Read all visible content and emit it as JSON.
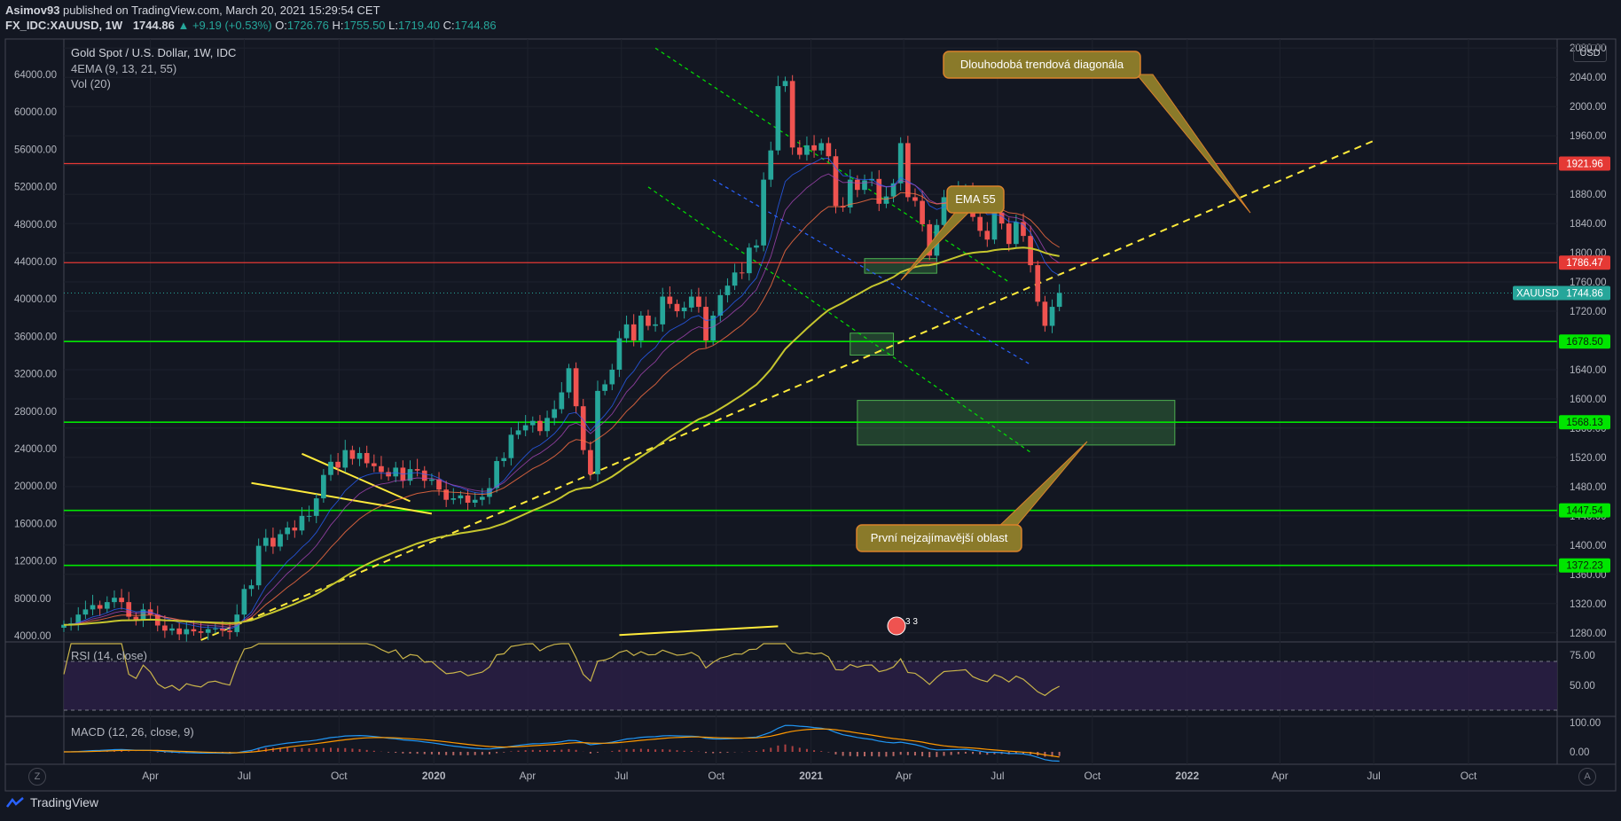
{
  "header": {
    "publisher": "Asimov93",
    "published_text": "published on TradingView.com, March 20, 2021 15:29:54 CET",
    "symbol": "FX_IDC:XAUUSD, 1W",
    "last": "1744.86",
    "change": "+9.19 (+0.53%)",
    "ohlc": [
      {
        "k": "O:",
        "v": "1726.76"
      },
      {
        "k": "H:",
        "v": "1755.50"
      },
      {
        "k": "L:",
        "v": "1719.40"
      },
      {
        "k": "C:",
        "v": "1744.86"
      }
    ]
  },
  "legend": {
    "title": "Gold Spot / U.S. Dollar, 1W, IDC",
    "ema": "4EMA (9, 13, 21, 55)",
    "vol": "Vol (20)",
    "rsi": "RSI (14, close)",
    "macd": "MACD (12, 26, close, 9)"
  },
  "currency_button": "USD",
  "footer": {
    "brand": "TradingView",
    "z_button": "Z",
    "a_button": "A"
  },
  "colors": {
    "background": "#131722",
    "up": "#26a69a",
    "down": "#ef5350",
    "support": "#00e600",
    "resistance": "#e53935",
    "trend": "#ffeb3b",
    "ema55": "#c6c62e",
    "annotation_fill": "#8a7a2a",
    "annotation_border": "#d9822b",
    "rsi_band": "#2a1f44"
  },
  "chart_data": {
    "type": "candlestick",
    "symbol": "XAUUSD",
    "interval": "1W",
    "x_tick_labels": [
      "Apr",
      "Jul",
      "Oct",
      "2020",
      "Apr",
      "Jul",
      "Oct",
      "2021",
      "Apr",
      "Jul",
      "Oct",
      "2022",
      "Apr",
      "Jul",
      "Oct"
    ],
    "x_tick_dates": [
      "2019-04-01",
      "2019-07-01",
      "2019-10-01",
      "2020-01-01",
      "2020-04-01",
      "2020-07-01",
      "2020-10-01",
      "2021-01-01",
      "2021-04-01",
      "2021-07-01",
      "2021-10-01",
      "2022-01-01",
      "2022-04-01",
      "2022-07-01",
      "2022-10-01"
    ],
    "x_range": [
      "2019-01-07",
      "2022-12-26"
    ],
    "y_right_ticks": [
      2080,
      2040,
      2000,
      1960,
      1920,
      1880,
      1840,
      1800,
      1760,
      1720,
      1680,
      1640,
      1600,
      1560,
      1520,
      1480,
      1440,
      1400,
      1360,
      1320,
      1280
    ],
    "y_right_range": [
      1270,
      2090
    ],
    "volume_scale_ticks": [
      "64000.00",
      "60000.00",
      "56000.00",
      "52000.00",
      "48000.00",
      "44000.00",
      "40000.00",
      "36000.00",
      "32000.00",
      "28000.00",
      "24000.00",
      "20000.00",
      "16000.00",
      "12000.00",
      "8000.00",
      "4000.00"
    ],
    "candles_start": "2019-01-07",
    "candles_close": [
      1291,
      1293,
      1305,
      1312,
      1318,
      1313,
      1322,
      1328,
      1322,
      1302,
      1298,
      1312,
      1305,
      1290,
      1283,
      1286,
      1278,
      1285,
      1282,
      1280,
      1285,
      1286,
      1283,
      1281,
      1305,
      1340,
      1345,
      1399,
      1410,
      1398,
      1415,
      1424,
      1420,
      1440,
      1440,
      1464,
      1496,
      1514,
      1506,
      1530,
      1518,
      1526,
      1512,
      1508,
      1500,
      1494,
      1506,
      1488,
      1504,
      1502,
      1488,
      1490,
      1476,
      1462,
      1464,
      1468,
      1458,
      1462,
      1466,
      1478,
      1515,
      1519,
      1551,
      1557,
      1564,
      1570,
      1556,
      1574,
      1586,
      1609,
      1642,
      1590,
      1530,
      1497,
      1611,
      1620,
      1640,
      1683,
      1702,
      1680,
      1714,
      1700,
      1702,
      1740,
      1730,
      1720,
      1725,
      1740,
      1726,
      1680,
      1714,
      1742,
      1755,
      1773,
      1772,
      1807,
      1810,
      1900,
      1940,
      2028,
      2035,
      1944,
      1934,
      1947,
      1940,
      1950,
      1932,
      1864,
      1862,
      1900,
      1886,
      1899,
      1901,
      1867,
      1877,
      1895,
      1950,
      1876,
      1871,
      1839,
      1796,
      1838,
      1876,
      1880,
      1884,
      1888,
      1849,
      1830,
      1818,
      1855,
      1840,
      1812,
      1842,
      1823,
      1783,
      1733,
      1700,
      1726,
      1745
    ],
    "ema55": {
      "approx_last": 1772
    },
    "horizontal_levels": [
      {
        "price": 1921.96,
        "label": "1921.96",
        "color": "#e53935"
      },
      {
        "price": 1786.47,
        "label": "1786.47",
        "color": "#e53935"
      },
      {
        "price": 1678.5,
        "label": "1678.50",
        "color": "#00e600"
      },
      {
        "price": 1568.13,
        "label": "1568.13",
        "color": "#00e600"
      },
      {
        "price": 1447.54,
        "label": "1447.54",
        "color": "#00e600"
      },
      {
        "price": 1372.23,
        "label": "1372.23",
        "color": "#00e600"
      }
    ],
    "last_price_label": {
      "symbol": "XAUUSD",
      "price": "1744.86"
    },
    "zones": [
      {
        "from_date": "2021-02-22",
        "to_date": "2021-05-03",
        "price_low": 1772,
        "price_high": 1792
      },
      {
        "from_date": "2021-02-08",
        "to_date": "2021-03-22",
        "price_low": 1660,
        "price_high": 1690
      },
      {
        "from_date": "2021-02-15",
        "to_date": "2021-12-20",
        "price_low": 1537,
        "price_high": 1598
      }
    ],
    "trendlines": [
      {
        "style": "dashed",
        "color": "#ffeb3b",
        "from": [
          "2019-05-20",
          1270
        ],
        "to": [
          "2022-07-04",
          1955
        ]
      },
      {
        "style": "dashed",
        "color": "#00e600",
        "from": [
          "2020-08-03",
          2080
        ],
        "to": [
          "2021-07-12",
          1760
        ]
      },
      {
        "style": "dashed",
        "color": "#00e600",
        "from": [
          "2020-07-27",
          1890
        ],
        "to": [
          "2021-08-02",
          1527
        ]
      },
      {
        "style": "dashed",
        "color": "#2962ff",
        "from": [
          "2020-09-28",
          1900
        ],
        "to": [
          "2021-08-02",
          1647
        ]
      },
      {
        "style": "solid",
        "color": "#ffeb3b",
        "from": [
          "2019-08-26",
          1525
        ],
        "to": [
          "2019-12-09",
          1460
        ]
      },
      {
        "style": "solid",
        "color": "#ffeb3b",
        "from": [
          "2019-07-08",
          1485
        ],
        "to": [
          "2019-12-30",
          1443
        ]
      },
      {
        "style": "solid",
        "color": "#ffeb3b",
        "from": [
          "2020-06-29",
          1277
        ],
        "to": [
          "2020-11-30",
          1289
        ]
      }
    ],
    "annotations": [
      {
        "text": "Dlouhodobá trendová diagonála"
      },
      {
        "text": "EMA 55"
      },
      {
        "text": "První nejzajímavější oblast"
      }
    ],
    "events_badge": "3 3",
    "rsi": {
      "ticks": [
        "75.00",
        "50.00"
      ],
      "upper": 70,
      "lower": 30,
      "approx_last": 38
    },
    "macd": {
      "ticks": [
        "100.00",
        "0.00"
      ],
      "approx_last": -18
    }
  }
}
